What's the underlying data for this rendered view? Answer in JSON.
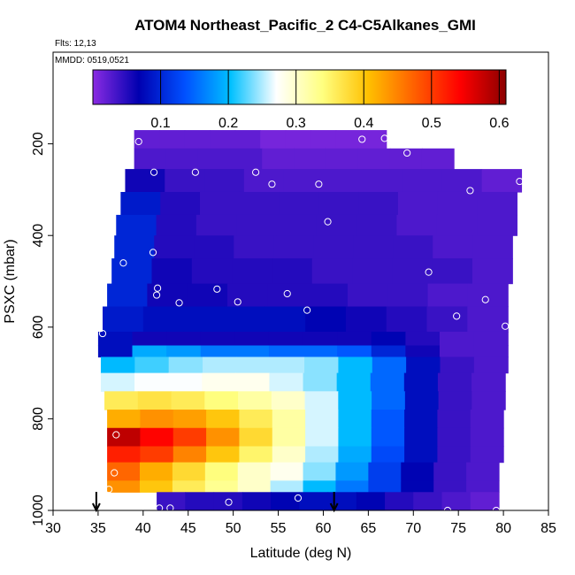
{
  "chart_data": {
    "type": "heatmap",
    "title": "ATOM4 Northeast_Pacific_2 C4-C5Alkanes_GMI",
    "flights_label": "Flts: 12,13",
    "mmdd_label": "MMDD: 0519,0521",
    "xlabel": "Latitude (deg N)",
    "ylabel": "PSXC (mbar)",
    "xlim": [
      30,
      85
    ],
    "ylim": [
      1000,
      0
    ],
    "x_ticks": [
      30,
      35,
      40,
      45,
      50,
      55,
      60,
      65,
      70,
      75,
      80,
      85
    ],
    "y_ticks": [
      200,
      400,
      600,
      800,
      1000
    ],
    "colorbar": {
      "range": [
        0,
        0.61
      ],
      "ticks": [
        0.1,
        0.2,
        0.3,
        0.4,
        0.5,
        0.6
      ],
      "colors": [
        "#8a2be2",
        "#0000b0",
        "#0050ff",
        "#00c0ff",
        "#ffffff",
        "#ffff80",
        "#ffc000",
        "#ff6000",
        "#ff0000",
        "#8b0000"
      ]
    },
    "grid": false,
    "arrows_at_latitude": [
      34.8,
      61.2
    ],
    "layers": [
      {
        "p_top": 170,
        "p_bot": 210,
        "lat_start": 39,
        "lat_end": 67,
        "values": [
          0.02,
          0.02,
          0.02,
          0.02,
          0.02,
          0.01,
          0.01,
          0.01,
          0.01,
          0.01
        ]
      },
      {
        "p_top": 210,
        "p_bot": 255,
        "lat_start": 39,
        "lat_end": 74.5,
        "values": [
          0.03,
          0.03,
          0.03,
          0.03,
          0.02,
          0.02,
          0.02,
          0.02,
          0.02,
          0.02
        ]
      },
      {
        "p_top": 255,
        "p_bot": 305,
        "lat_start": 38,
        "lat_end": 82,
        "values": [
          0.06,
          0.04,
          0.04,
          0.03,
          0.03,
          0.03,
          0.03,
          0.03,
          0.03,
          0.02
        ]
      },
      {
        "p_top": 305,
        "p_bot": 355,
        "lat_start": 37.5,
        "lat_end": 81.5,
        "values": [
          0.09,
          0.05,
          0.04,
          0.04,
          0.04,
          0.04,
          0.04,
          0.03,
          0.03,
          0.03
        ]
      },
      {
        "p_top": 355,
        "p_bot": 400,
        "lat_start": 37,
        "lat_end": 81.5,
        "values": [
          0.1,
          0.05,
          0.04,
          0.04,
          0.04,
          0.04,
          0.04,
          0.03,
          0.03,
          0.03
        ]
      },
      {
        "p_top": 400,
        "p_bot": 450,
        "lat_start": 36.8,
        "lat_end": 81,
        "values": [
          0.1,
          0.05,
          0.05,
          0.04,
          0.04,
          0.04,
          0.04,
          0.04,
          0.03,
          0.03
        ]
      },
      {
        "p_top": 450,
        "p_bot": 505,
        "lat_start": 36.5,
        "lat_end": 81,
        "values": [
          0.1,
          0.06,
          0.05,
          0.05,
          0.05,
          0.04,
          0.04,
          0.04,
          0.04,
          0.03
        ]
      },
      {
        "p_top": 505,
        "p_bot": 555,
        "lat_start": 36,
        "lat_end": 80.5,
        "values": [
          0.1,
          0.06,
          0.06,
          0.05,
          0.05,
          0.05,
          0.04,
          0.04,
          0.03,
          0.03
        ]
      },
      {
        "p_top": 555,
        "p_bot": 610,
        "lat_start": 35.5,
        "lat_end": 80.5,
        "values": [
          0.09,
          0.08,
          0.08,
          0.08,
          0.08,
          0.07,
          0.06,
          0.05,
          0.04,
          0.03
        ]
      },
      {
        "p_top": 610,
        "p_bot": 640,
        "lat_start": 35,
        "lat_end": 80.5,
        "values": [
          0.08,
          0.06,
          0.06,
          0.06,
          0.06,
          0.06,
          0.06,
          0.06,
          0.07,
          0.05,
          0.03,
          0.03
        ]
      },
      {
        "p_top": 640,
        "p_bot": 665,
        "lat_start": 35,
        "lat_end": 80.5,
        "values": [
          0.08,
          0.19,
          0.18,
          0.16,
          0.16,
          0.15,
          0.15,
          0.14,
          0.1,
          0.06,
          0.03,
          0.03
        ]
      },
      {
        "p_top": 665,
        "p_bot": 700,
        "lat_start": 35.3,
        "lat_end": 80.5,
        "values": [
          0.2,
          0.22,
          0.24,
          0.25,
          0.25,
          0.25,
          0.24,
          0.2,
          0.15,
          0.08,
          0.04,
          0.03
        ]
      },
      {
        "p_top": 700,
        "p_bot": 740,
        "lat_start": 35.3,
        "lat_end": 80.2,
        "values": [
          0.26,
          0.27,
          0.27,
          0.28,
          0.28,
          0.26,
          0.24,
          0.2,
          0.15,
          0.08,
          0.04,
          0.03
        ]
      },
      {
        "p_top": 740,
        "p_bot": 780,
        "lat_start": 35.7,
        "lat_end": 80.2,
        "values": [
          0.36,
          0.37,
          0.36,
          0.34,
          0.32,
          0.3,
          0.26,
          0.2,
          0.15,
          0.08,
          0.04,
          0.03
        ]
      },
      {
        "p_top": 780,
        "p_bot": 820,
        "lat_start": 36,
        "lat_end": 80,
        "values": [
          0.42,
          0.44,
          0.43,
          0.4,
          0.36,
          0.32,
          0.26,
          0.2,
          0.14,
          0.08,
          0.04,
          0.03
        ]
      },
      {
        "p_top": 820,
        "p_bot": 860,
        "lat_start": 36,
        "lat_end": 80,
        "values": [
          0.58,
          0.54,
          0.5,
          0.44,
          0.38,
          0.32,
          0.26,
          0.2,
          0.14,
          0.08,
          0.04,
          0.03
        ]
      },
      {
        "p_top": 860,
        "p_bot": 895,
        "lat_start": 36,
        "lat_end": 80,
        "values": [
          0.52,
          0.5,
          0.45,
          0.4,
          0.35,
          0.3,
          0.25,
          0.19,
          0.13,
          0.08,
          0.04,
          0.03
        ]
      },
      {
        "p_top": 895,
        "p_bot": 935,
        "lat_start": 36,
        "lat_end": 79.5,
        "values": [
          0.47,
          0.42,
          0.38,
          0.34,
          0.3,
          0.28,
          0.24,
          0.18,
          0.12,
          0.07,
          0.04,
          0.03
        ]
      },
      {
        "p_top": 935,
        "p_bot": 960,
        "lat_start": 36,
        "lat_end": 79.5,
        "values": [
          0.44,
          0.4,
          0.36,
          0.33,
          0.3,
          0.25,
          0.2,
          0.16,
          0.12,
          0.07,
          0.04,
          0.03
        ]
      },
      {
        "p_top": 960,
        "p_bot": 1000,
        "lat_start": 41.5,
        "lat_end": 79.5,
        "values": [
          0.04,
          0.05,
          0.05,
          0.06,
          0.07,
          0.08,
          0.08,
          0.07,
          0.05,
          0.04,
          0.03,
          0.02
        ]
      }
    ],
    "observations": [
      {
        "lat": 39.5,
        "p": 195
      },
      {
        "lat": 41.2,
        "p": 262
      },
      {
        "lat": 45.8,
        "p": 262
      },
      {
        "lat": 52.5,
        "p": 262
      },
      {
        "lat": 54.3,
        "p": 288
      },
      {
        "lat": 59.5,
        "p": 288
      },
      {
        "lat": 64.3,
        "p": 190
      },
      {
        "lat": 66.8,
        "p": 188
      },
      {
        "lat": 69.3,
        "p": 220
      },
      {
        "lat": 76.3,
        "p": 302
      },
      {
        "lat": 81.8,
        "p": 282
      },
      {
        "lat": 60.5,
        "p": 370
      },
      {
        "lat": 41.1,
        "p": 437
      },
      {
        "lat": 37.8,
        "p": 460
      },
      {
        "lat": 71.7,
        "p": 480
      },
      {
        "lat": 41.6,
        "p": 515
      },
      {
        "lat": 41.5,
        "p": 530
      },
      {
        "lat": 48.2,
        "p": 517
      },
      {
        "lat": 44.0,
        "p": 547
      },
      {
        "lat": 50.5,
        "p": 545
      },
      {
        "lat": 56.0,
        "p": 527
      },
      {
        "lat": 58.2,
        "p": 563
      },
      {
        "lat": 78.0,
        "p": 540
      },
      {
        "lat": 74.8,
        "p": 576
      },
      {
        "lat": 80.2,
        "p": 598
      },
      {
        "lat": 35.5,
        "p": 614
      },
      {
        "lat": 37.0,
        "p": 835
      },
      {
        "lat": 36.8,
        "p": 918
      },
      {
        "lat": 36.2,
        "p": 954
      },
      {
        "lat": 41.8,
        "p": 995
      },
      {
        "lat": 43.0,
        "p": 995
      },
      {
        "lat": 49.5,
        "p": 982
      },
      {
        "lat": 57.2,
        "p": 973
      },
      {
        "lat": 73.8,
        "p": 1000
      },
      {
        "lat": 79.2,
        "p": 1000
      }
    ]
  }
}
